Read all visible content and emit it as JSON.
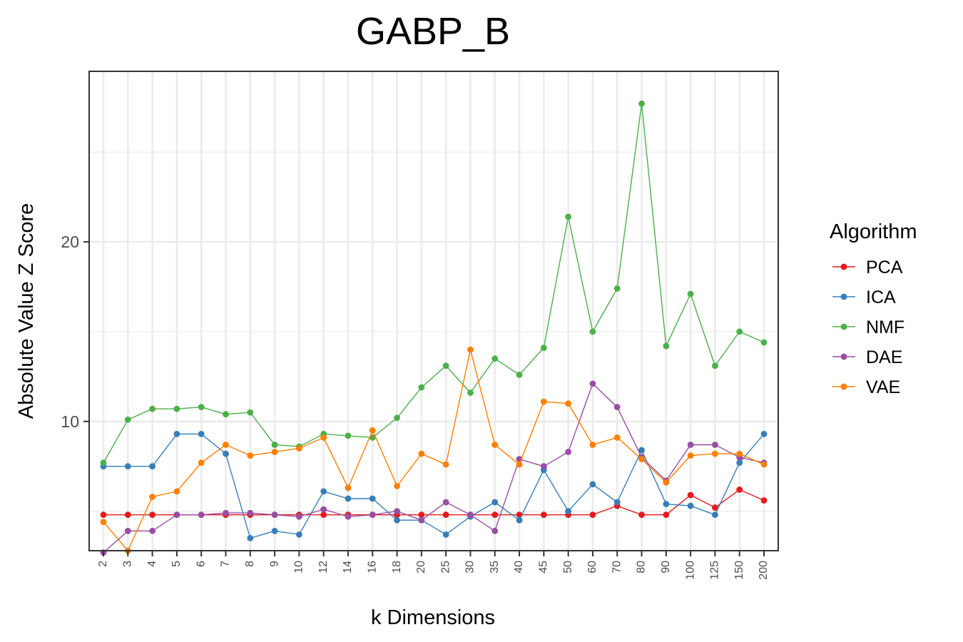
{
  "chart_data": {
    "type": "line",
    "title": "GABP_B",
    "xlabel": "k Dimensions",
    "ylabel": "Absolute Value Z Score",
    "categories": [
      "2",
      "3",
      "4",
      "5",
      "6",
      "7",
      "8",
      "9",
      "10",
      "12",
      "14",
      "16",
      "18",
      "20",
      "25",
      "30",
      "35",
      "40",
      "45",
      "50",
      "60",
      "70",
      "80",
      "90",
      "100",
      "125",
      "150",
      "200"
    ],
    "ylim": [
      2.8,
      29.5
    ],
    "yticks": [
      10,
      20
    ],
    "grid": true,
    "legend": {
      "title": "Algorithm",
      "position": "right"
    },
    "series": [
      {
        "name": "PCA",
        "color": "#E41A1C",
        "values": [
          4.8,
          4.8,
          4.8,
          4.8,
          4.8,
          4.8,
          4.8,
          4.8,
          4.8,
          4.8,
          4.8,
          4.8,
          4.8,
          4.8,
          4.8,
          4.8,
          4.8,
          4.8,
          4.8,
          4.8,
          4.8,
          5.3,
          4.8,
          4.8,
          5.9,
          5.2,
          6.2,
          5.6
        ]
      },
      {
        "name": "ICA",
        "color": "#377EB8",
        "values": [
          7.5,
          7.5,
          7.5,
          9.3,
          9.3,
          8.2,
          3.5,
          3.9,
          3.7,
          6.1,
          5.7,
          5.7,
          4.5,
          4.5,
          3.7,
          4.7,
          5.5,
          4.5,
          7.3,
          5.0,
          6.5,
          5.5,
          8.4,
          5.4,
          5.3,
          4.8,
          7.7,
          9.3
        ]
      },
      {
        "name": "NMF",
        "color": "#4DAF4A",
        "values": [
          7.7,
          10.1,
          10.7,
          10.7,
          10.8,
          10.4,
          10.5,
          8.7,
          8.6,
          9.3,
          9.2,
          9.1,
          10.2,
          11.9,
          13.1,
          11.6,
          13.5,
          12.6,
          14.1,
          21.4,
          15.0,
          17.4,
          27.7,
          14.2,
          17.1,
          13.1,
          15.0,
          14.4
        ]
      },
      {
        "name": "DAE",
        "color": "#984EA3",
        "values": [
          2.7,
          3.9,
          3.9,
          4.8,
          4.8,
          4.9,
          4.9,
          4.8,
          4.7,
          5.1,
          4.7,
          4.8,
          5.0,
          4.5,
          5.5,
          4.8,
          3.9,
          7.9,
          7.5,
          8.3,
          12.1,
          10.8,
          8.0,
          6.7,
          8.7,
          8.7,
          8.0,
          7.7
        ]
      },
      {
        "name": "VAE",
        "color": "#FF7F00",
        "values": [
          4.4,
          2.8,
          5.8,
          6.1,
          7.7,
          8.7,
          8.1,
          8.3,
          8.5,
          9.1,
          6.3,
          9.5,
          6.4,
          8.2,
          7.6,
          14.0,
          8.7,
          7.6,
          11.1,
          11.0,
          8.7,
          9.1,
          7.9,
          6.6,
          8.1,
          8.2,
          8.2,
          7.6
        ]
      }
    ]
  }
}
